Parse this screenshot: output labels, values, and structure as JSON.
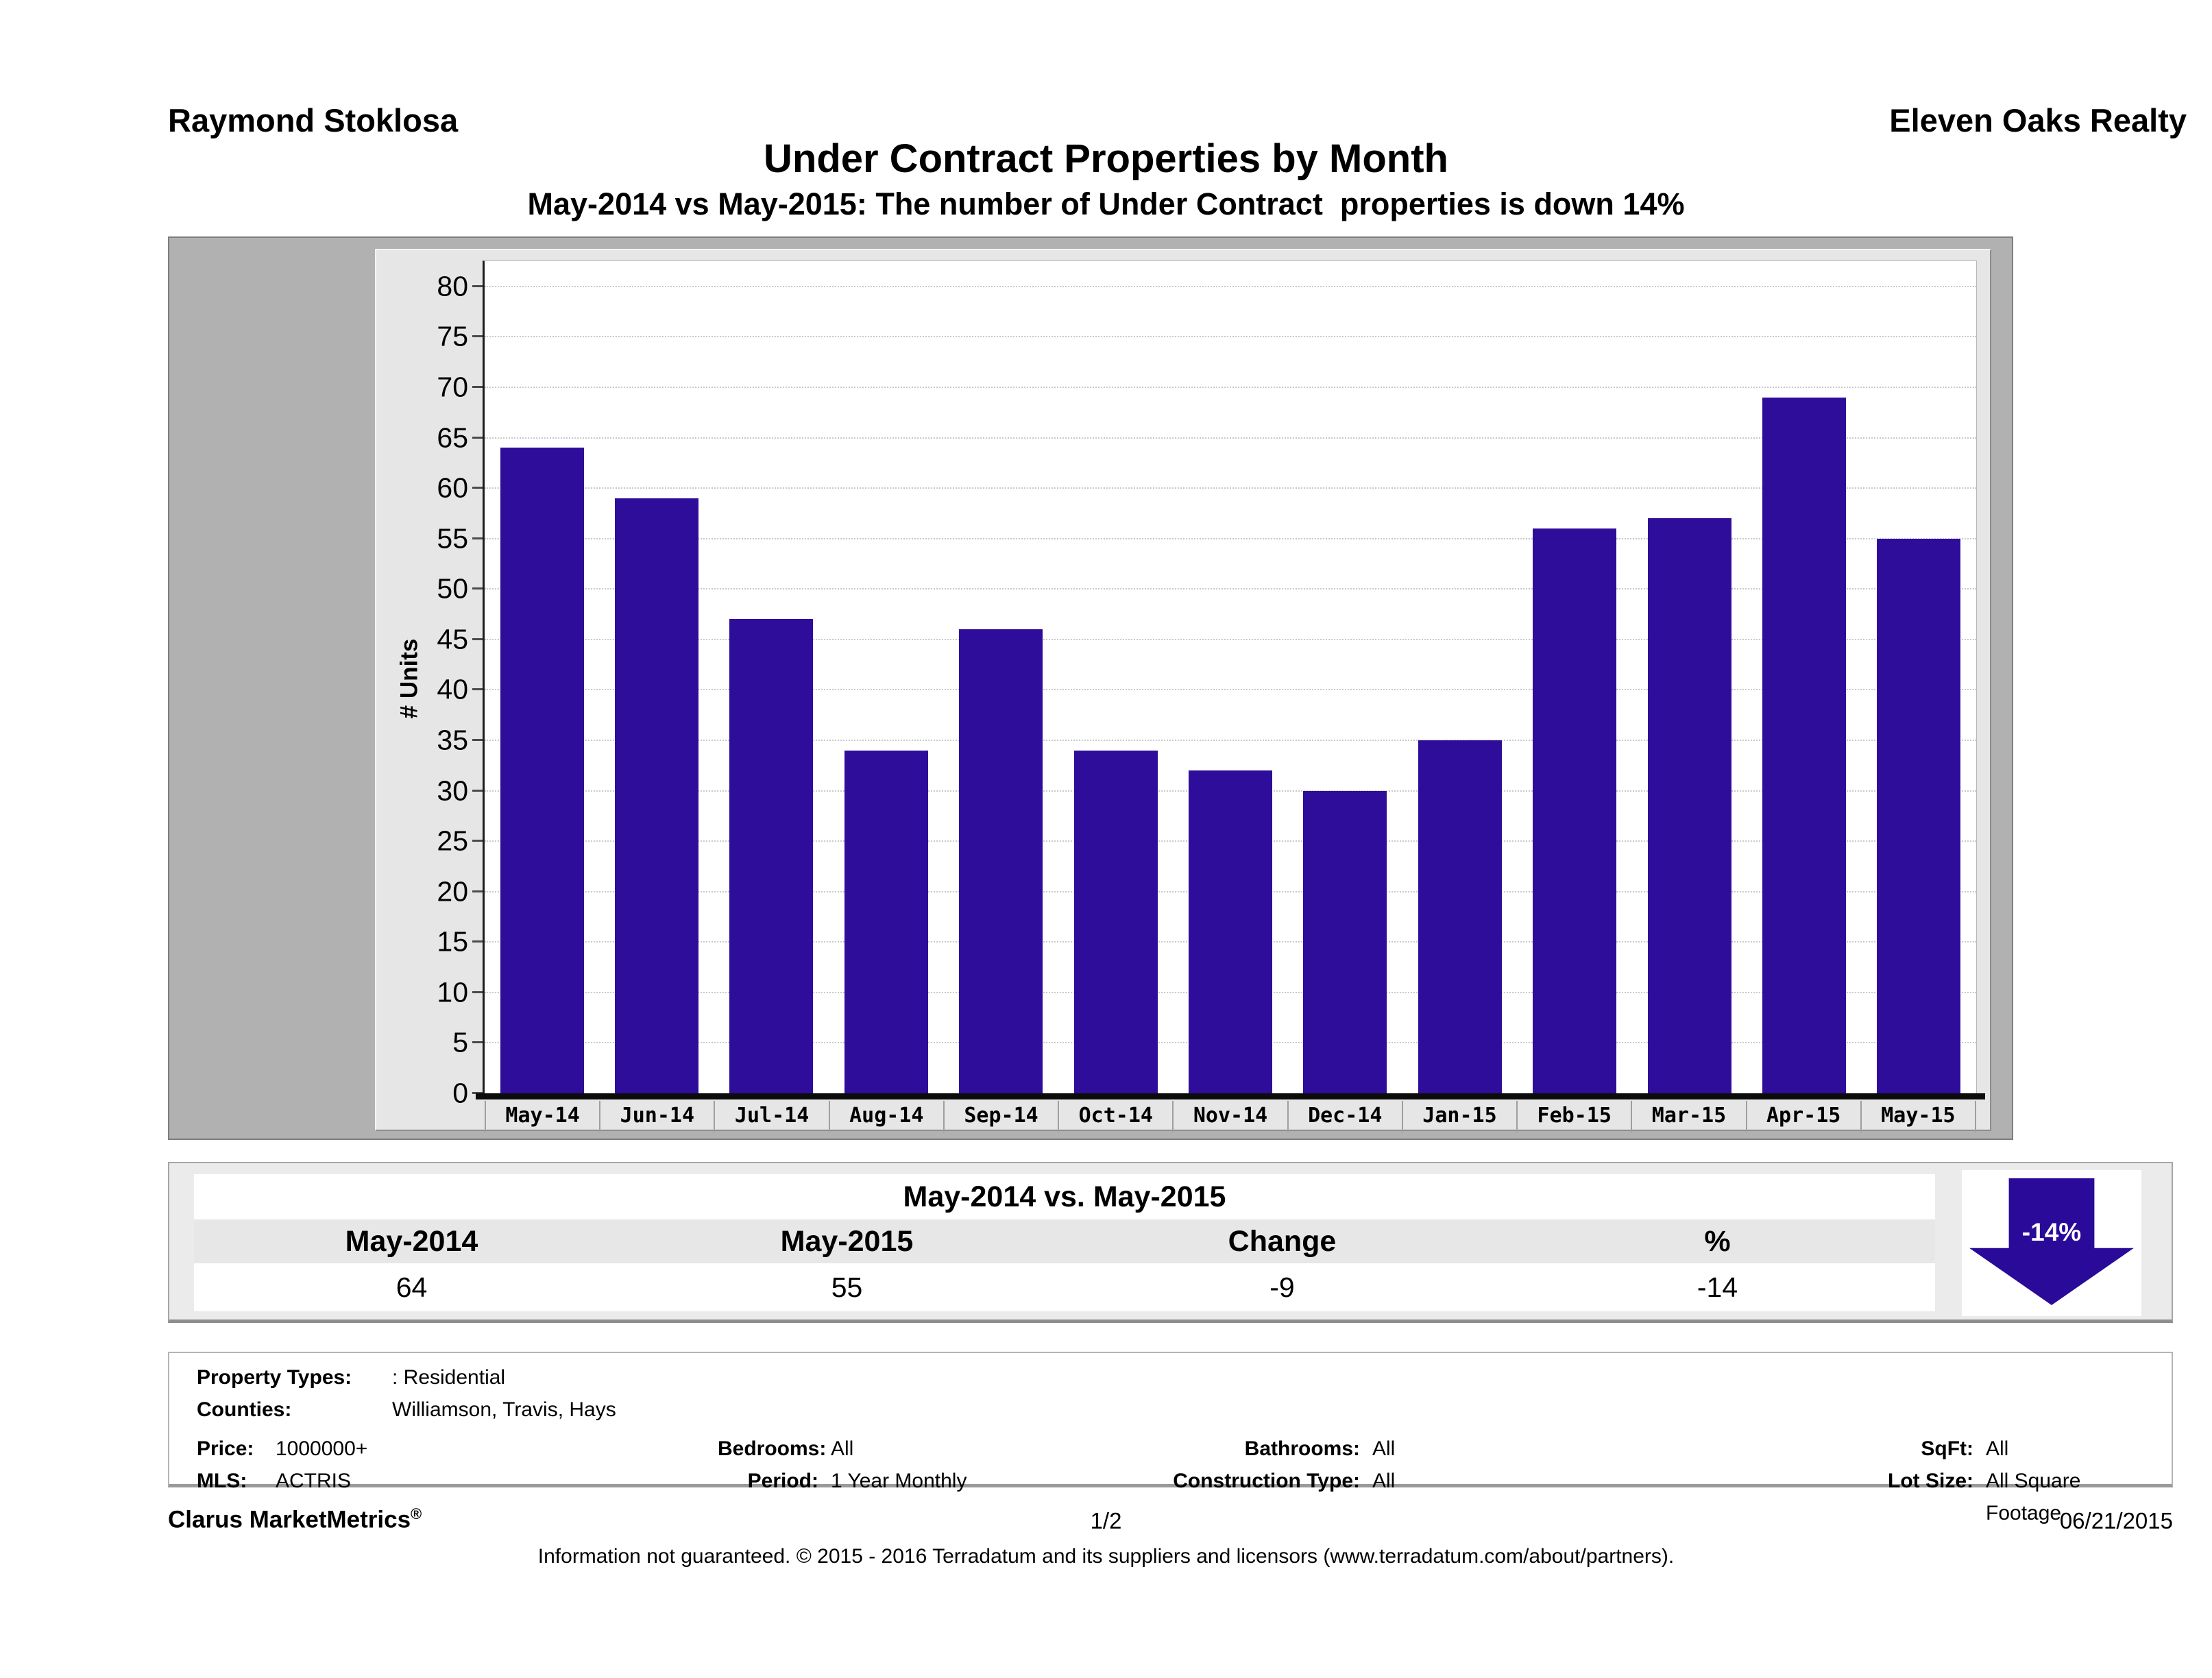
{
  "header": {
    "left_name": "Raymond Stoklosa",
    "right_name": "Eleven Oaks Realty"
  },
  "title": "Under Contract Properties by Month",
  "subtitle": "May-2014 vs May-2015: The number of Under Contract  properties is down 14%",
  "chart_data": {
    "type": "bar",
    "title": "Under Contract Properties by Month",
    "categories": [
      "May-14",
      "Jun-14",
      "Jul-14",
      "Aug-14",
      "Sep-14",
      "Oct-14",
      "Nov-14",
      "Dec-14",
      "Jan-15",
      "Feb-15",
      "Mar-15",
      "Apr-15",
      "May-15"
    ],
    "values": [
      64,
      59,
      47,
      34,
      46,
      34,
      32,
      30,
      35,
      56,
      57,
      69,
      55
    ],
    "xlabel": "",
    "ylabel": "# Units",
    "ylim": [
      0,
      82.5
    ],
    "ytick_step": 5,
    "ytick_max": 80,
    "grid": true,
    "legend": false,
    "bar_color": "#2e0d9b"
  },
  "comparison": {
    "title": "May-2014 vs. May-2015",
    "columns": [
      "May-2014",
      "May-2015",
      "Change",
      "%"
    ],
    "values": [
      "64",
      "55",
      "-9",
      "-14"
    ],
    "arrow": {
      "label": "-14%",
      "color": "#2a0a99",
      "direction": "down"
    }
  },
  "filters": {
    "property_types": {
      "label": "Property Types:",
      "value": ": Residential"
    },
    "counties": {
      "label": "Counties:",
      "value": "Williamson, Travis, Hays"
    },
    "price": {
      "label": "Price:",
      "value": "1000000+"
    },
    "bedrooms": {
      "label": "Bedrooms:",
      "value": "All"
    },
    "bathrooms": {
      "label": "Bathrooms:",
      "value": "All"
    },
    "sqft": {
      "label": "SqFt:",
      "value": "All"
    },
    "mls": {
      "label": "MLS:",
      "value": "ACTRIS"
    },
    "period": {
      "label": "Period:",
      "value": "1 Year Monthly"
    },
    "construction_type": {
      "label": "Construction Type:",
      "value": "All"
    },
    "lot_size": {
      "label": "Lot Size:",
      "value": "All Square Footage"
    }
  },
  "footer": {
    "brand": "Clarus MarketMetrics",
    "registered": "®",
    "page": "1/2",
    "date": "06/21/2015",
    "disclaimer": "Information not guaranteed. © 2015 - 2016 Terradatum and its suppliers and licensors (www.terradatum.com/about/partners)."
  }
}
